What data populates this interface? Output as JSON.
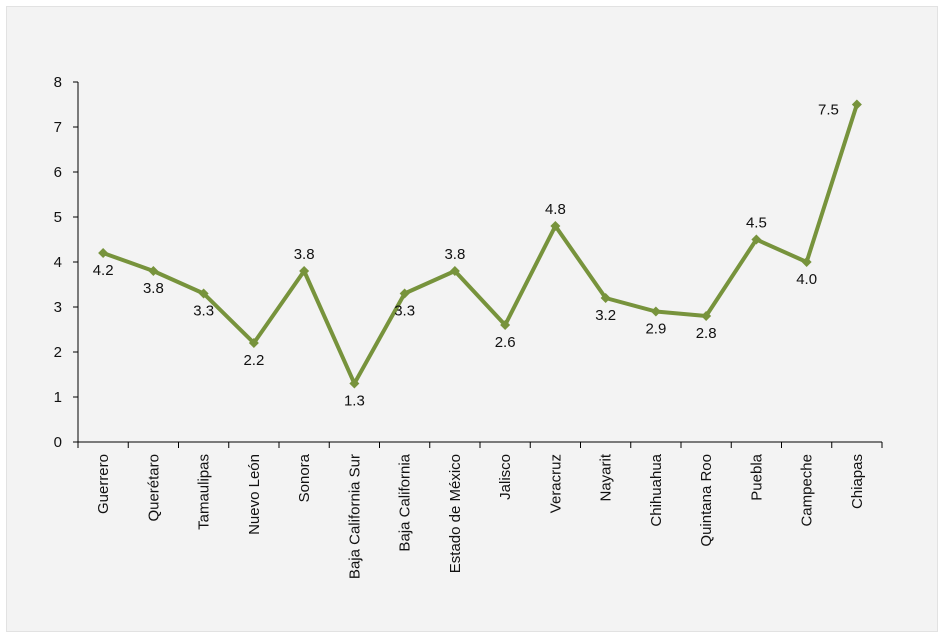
{
  "chart_data": {
    "type": "line",
    "categories": [
      "Guerrero",
      "Querétaro",
      "Tamaulipas",
      "Nuevo León",
      "Sonora",
      "Baja California Sur",
      "Baja California",
      "Estado de México",
      "Jalisco",
      "Veracruz",
      "Nayarit",
      "Chihuahua",
      "Quintana Roo",
      "Puebla",
      "Campeche",
      "Chiapas"
    ],
    "series": [
      {
        "values": [
          4.2,
          3.8,
          3.3,
          2.2,
          3.8,
          1.3,
          3.3,
          3.8,
          2.6,
          4.8,
          3.2,
          2.9,
          2.8,
          4.5,
          4.0,
          7.5
        ],
        "labels": [
          "4.2",
          "3.8",
          "3.3",
          "2.2",
          "3.8",
          "1.3",
          "3.3",
          "3.8",
          "2.6",
          "4.8",
          "3.2",
          "2.9",
          "2.8",
          "4.5",
          "4.0",
          "7.5"
        ],
        "color": "#77933c"
      }
    ],
    "ylim": [
      0,
      8
    ],
    "yticks": [
      "0",
      "1",
      "2",
      "3",
      "4",
      "5",
      "6",
      "7",
      "8"
    ],
    "grid": false,
    "legend": "none",
    "title": "",
    "xlabel": "",
    "ylabel": ""
  }
}
